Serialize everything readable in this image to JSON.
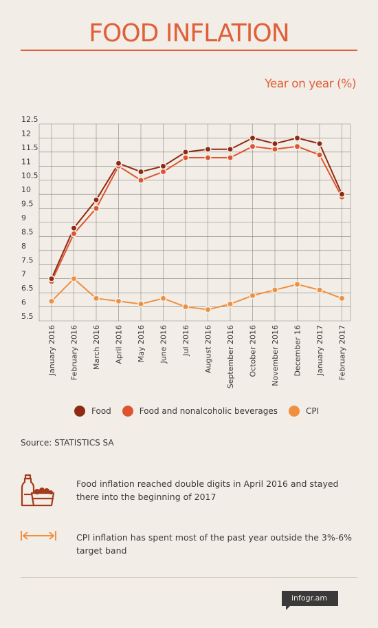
{
  "header": {
    "title": "FOOD INFLATION",
    "subtitle": "Year on year (%)"
  },
  "chart_data": {
    "type": "line",
    "title": "FOOD INFLATION",
    "ylabel": "Year on year (%)",
    "xlabel": "",
    "ylim": [
      5.5,
      12.5
    ],
    "yticks": [
      12.5,
      12,
      11.5,
      11,
      10.5,
      10,
      9.5,
      9,
      8.5,
      8,
      7.5,
      7,
      6.5,
      6,
      5.5
    ],
    "grid": true,
    "legend_position": "bottom",
    "categories": [
      "January 2016",
      "February 2016",
      "March 2016",
      "April 2016",
      "May 2016",
      "June 2016",
      "Jul 2016",
      "August 2016",
      "September 2016",
      "October 2016",
      "November 2016",
      "December 16",
      "January 2017",
      "February 2017"
    ],
    "series": [
      {
        "name": "Food",
        "color": "#8f2a12",
        "values": [
          7.0,
          8.8,
          9.8,
          11.1,
          10.8,
          11.0,
          11.5,
          11.6,
          11.6,
          12.0,
          11.8,
          12.0,
          11.8,
          10.0
        ]
      },
      {
        "name": "Food and nonalcoholic beverages",
        "color": "#dd5530",
        "values": [
          6.9,
          8.6,
          9.5,
          11.0,
          10.5,
          10.8,
          11.3,
          11.3,
          11.3,
          11.7,
          11.6,
          11.7,
          11.4,
          9.9
        ]
      },
      {
        "name": "CPI",
        "color": "#ef9040",
        "values": [
          6.2,
          7.0,
          6.3,
          6.2,
          6.1,
          6.3,
          6.0,
          5.9,
          6.1,
          6.4,
          6.6,
          6.8,
          6.6,
          6.3
        ]
      }
    ]
  },
  "legend": {
    "items": [
      {
        "label": "Food",
        "color": "#8f2a12"
      },
      {
        "label": "Food and nonalcoholic beverages",
        "color": "#dd5530"
      },
      {
        "label": "CPI",
        "color": "#ef9040"
      }
    ]
  },
  "source": "Source: STATISTICS SA",
  "notes": {
    "food": "Food inflation reached double digits in April 2016 and stayed there into the beginning of 2017",
    "cpi": "CPI inflation has spent most of the past year outside the 3%-6% target band",
    "food_icon": "groceries-icon",
    "cpi_icon": "double-arrow-icon"
  },
  "branding": {
    "badge": "infogr.am"
  }
}
